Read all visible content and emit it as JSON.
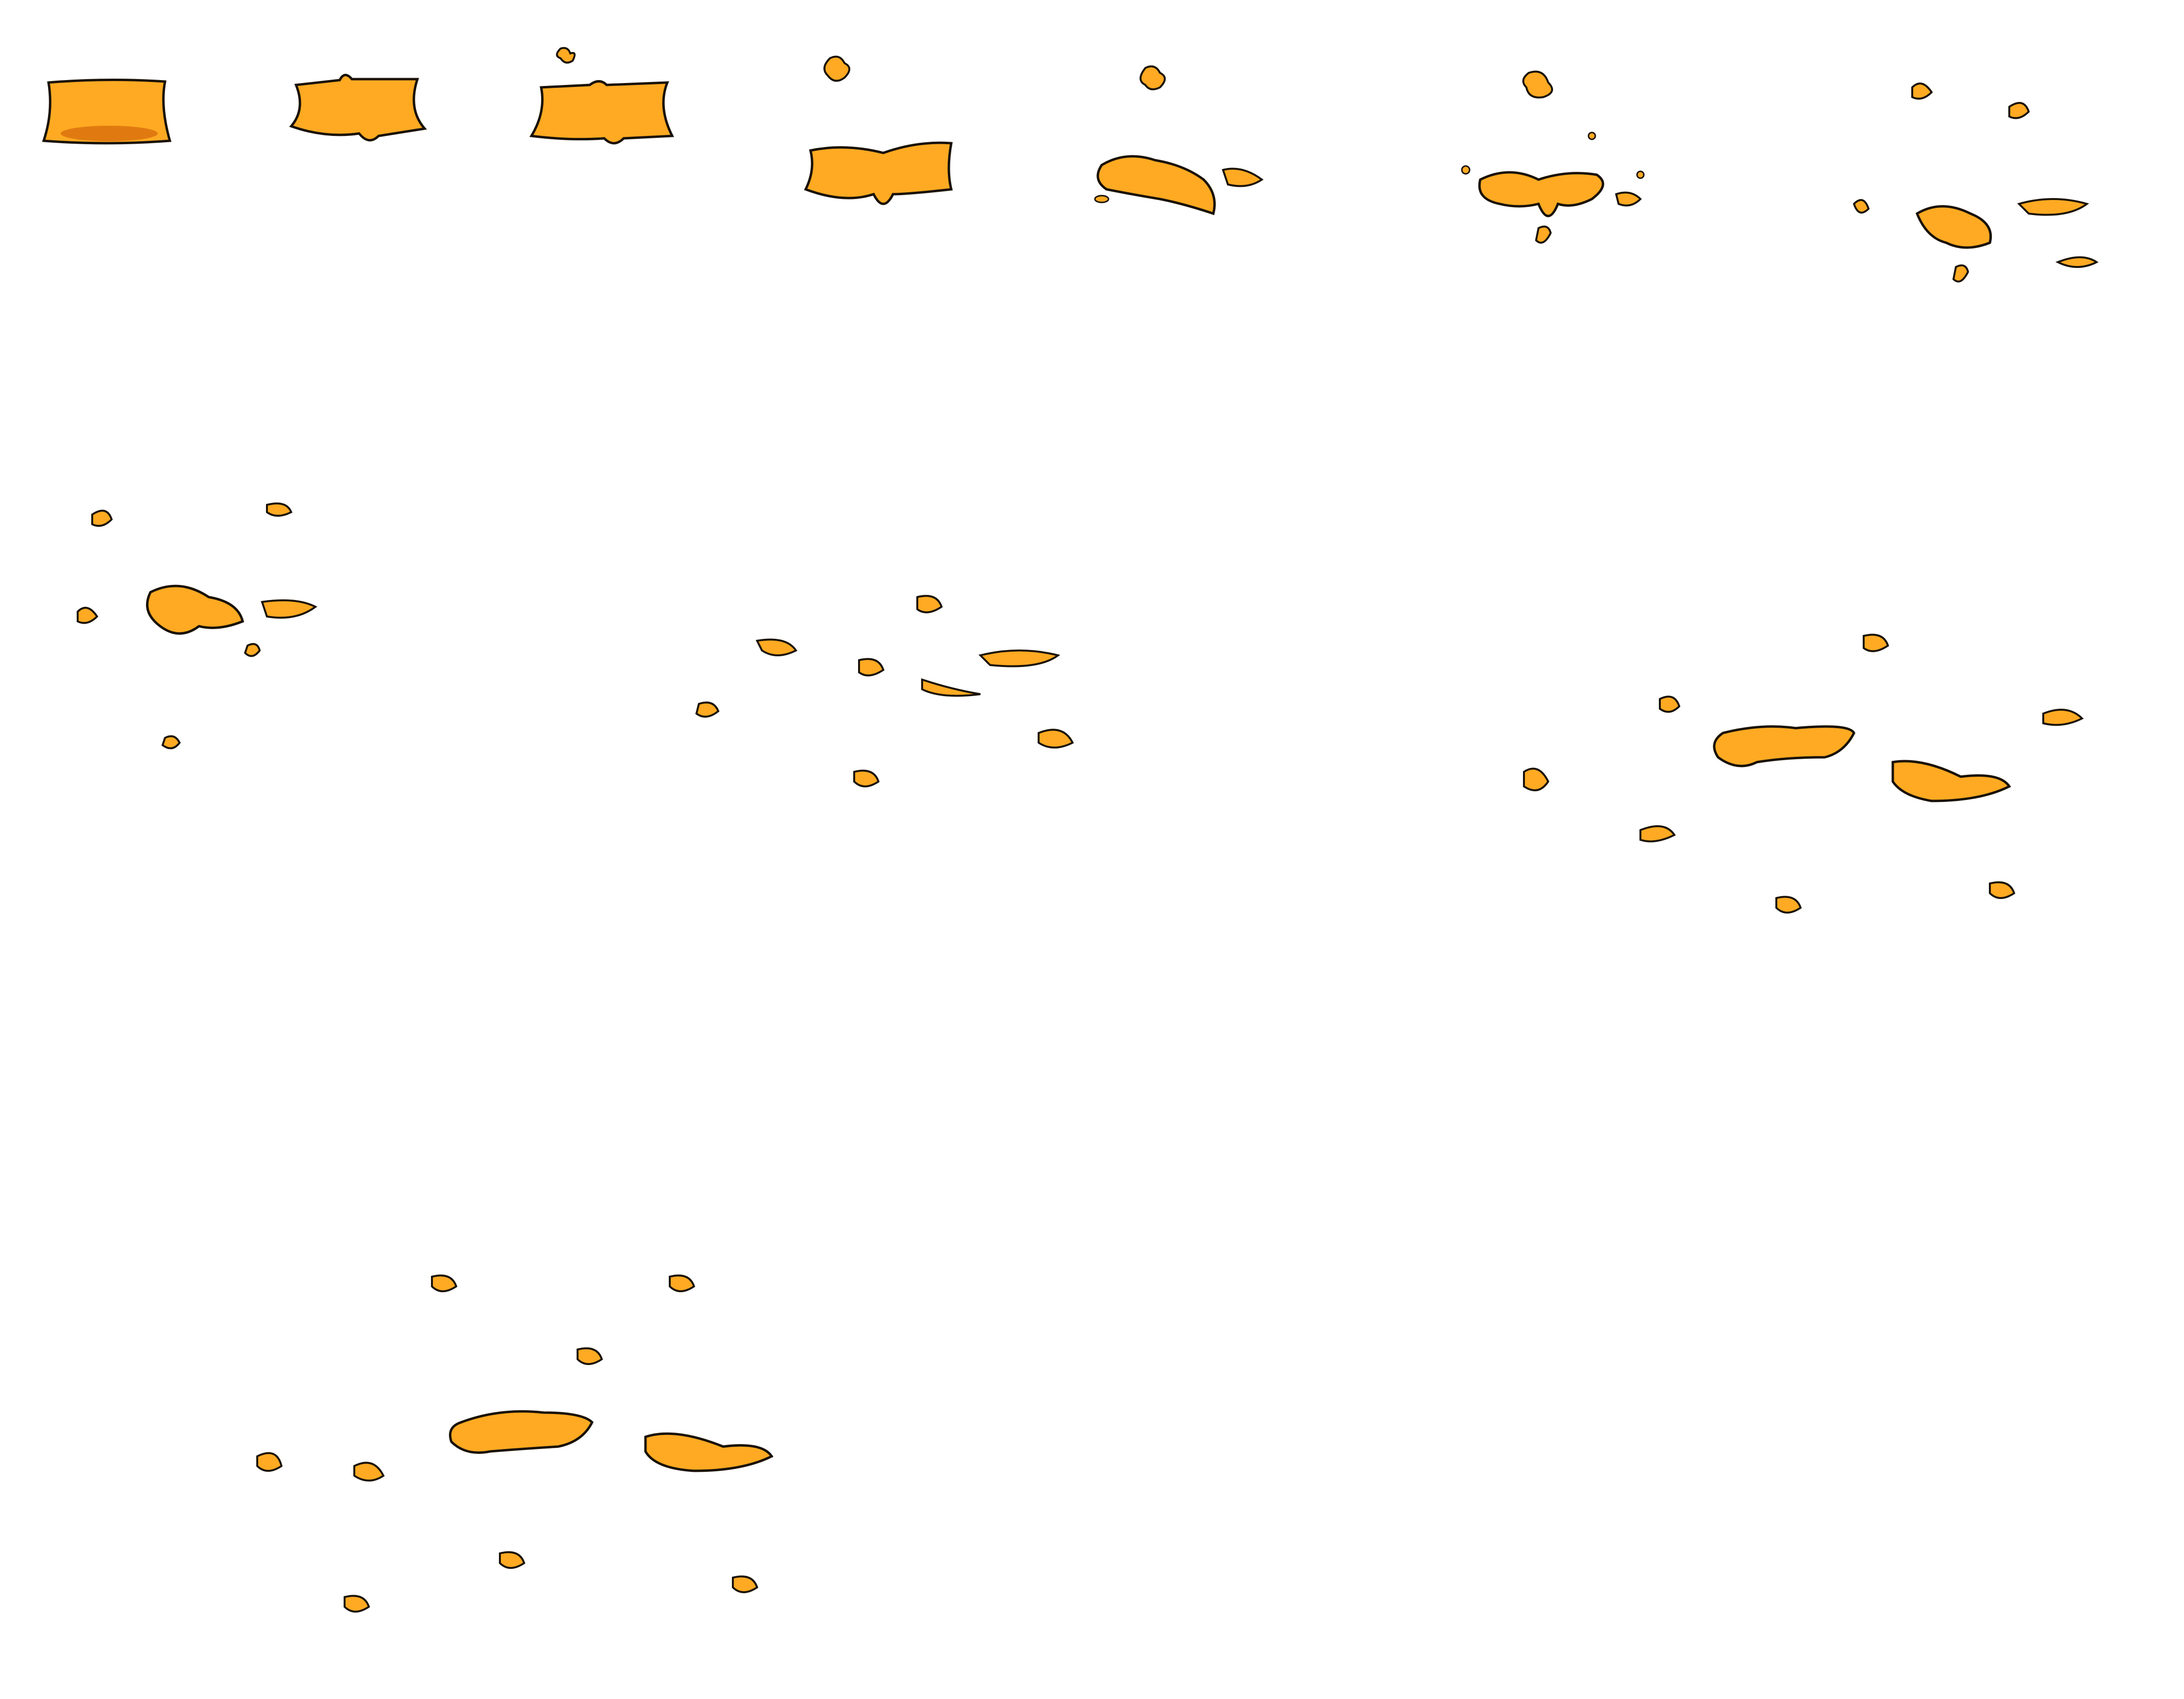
{
  "sprite_sheet": {
    "description_visible_text": "",
    "background": "#ffffff",
    "colors": {
      "fill": "#FFAA22",
      "fill_shadow": "#E07A10",
      "outline": "#1A1208",
      "highlight": "#FFE7B0"
    },
    "animation": "liquid-splash-burst",
    "frame_count": 11,
    "frames": [
      {
        "index": 1,
        "icon": "liquid-blob-icon"
      },
      {
        "index": 2,
        "icon": "liquid-blob-stretch-icon"
      },
      {
        "index": 3,
        "icon": "liquid-blob-burst-start-icon"
      },
      {
        "index": 4,
        "icon": "liquid-splash-early-icon"
      },
      {
        "index": 5,
        "icon": "liquid-splash-break-icon"
      },
      {
        "index": 6,
        "icon": "liquid-splash-scatter-icon"
      },
      {
        "index": 7,
        "icon": "liquid-splash-scatter-wide-icon"
      },
      {
        "index": 8,
        "icon": "liquid-splash-spray-icon"
      },
      {
        "index": 9,
        "icon": "liquid-splash-spray-wide-icon"
      },
      {
        "index": 10,
        "icon": "liquid-splash-full-icon"
      },
      {
        "index": 11,
        "icon": "liquid-splash-final-icon"
      }
    ]
  }
}
